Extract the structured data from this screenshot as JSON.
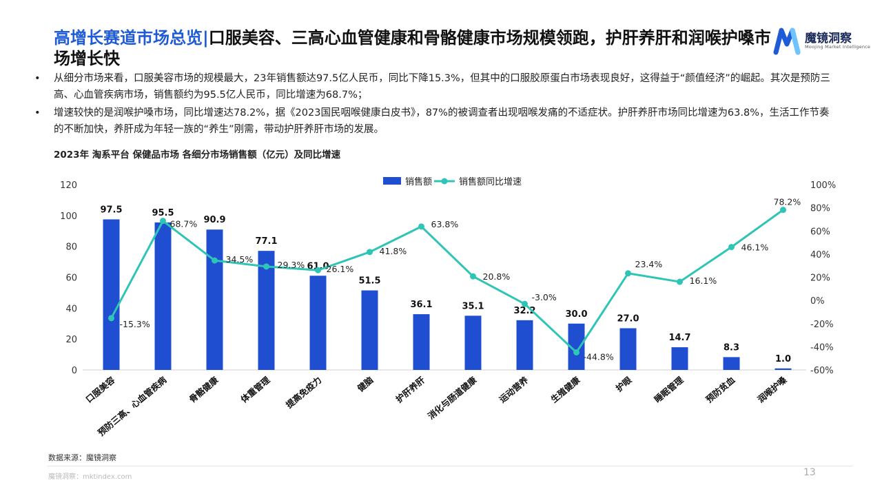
{
  "header": {
    "title_highlight": "高增长赛道市场总览",
    "title_sep": "|",
    "title_rest": "口服美容、三高心血管健康和骨骼健康市场规模领跑，护肝养肝和润喉护嗓市场增长快"
  },
  "logo": {
    "name": "魔镜洞察",
    "tagline": "Moojing Market Intelligence",
    "color": "#1f5bd6"
  },
  "bullets": [
    "从细分市场来看，口服美容市场的规模最大，23年销售额达97.5亿人民币，同比下降15.3%，但其中的口服胶原蛋白市场表现良好，这得益于“颜值经济”的崛起。其次是预防三高、心血管疾病市场，销售额约为95.5亿人民币，同比增速为68.7%；",
    "增速较快的是润喉护嗓市场，同比增速达78.2%，据《2023国民咽喉健康白皮书》，87%的被调查者出现咽喉发痛的不适症状。护肝养肝市场同比增速为63.8%，生活工作节奏的不断加快，养肝成为年轻一族的“养生”刚需，带动护肝养肝市场的发展。"
  ],
  "bullet_symbol": "•",
  "chart_title": "2023年 淘系平台 保健品市场 各细分市场销售额（亿元）及同比增速",
  "chart_data": {
    "type": "bar",
    "categories": [
      "口服美容",
      "预防三高、心血管疾病",
      "骨骼健康",
      "体重管理",
      "提高免疫力",
      "健脑",
      "护肝养肝",
      "消化与肠道健康",
      "运动营养",
      "生殖健康",
      "护眼",
      "睡眠管理",
      "预防贫血",
      "润喉护嗓"
    ],
    "series": [
      {
        "name": "销售额",
        "kind": "bar",
        "axis": "left",
        "color": "#1f4fd0",
        "values": [
          97.5,
          95.5,
          90.9,
          77.1,
          61.0,
          51.5,
          36.1,
          35.1,
          32.2,
          30.0,
          27.0,
          14.7,
          8.3,
          1.0
        ],
        "labels": [
          "97.5",
          "95.5",
          "90.9",
          "77.1",
          "61.0",
          "51.5",
          "36.1",
          "35.1",
          "32.2",
          "30.0",
          "27.0",
          "14.7",
          "8.3",
          "1.0"
        ]
      },
      {
        "name": "销售额同比增速",
        "kind": "line",
        "axis": "right",
        "color": "#2ec4b6",
        "values": [
          -15.3,
          68.7,
          34.5,
          29.3,
          26.1,
          41.8,
          63.8,
          20.8,
          -3.0,
          -44.8,
          23.4,
          16.1,
          46.1,
          78.2
        ],
        "labels": [
          "-15.3%",
          "68.7%",
          "34.5%",
          "29.3%",
          "26.1%",
          "41.8%",
          "63.8%",
          "20.8%",
          "-3.0%",
          "-44.8%",
          "23.4%",
          "16.1%",
          "46.1%",
          "78.2%"
        ]
      }
    ],
    "y_left": {
      "min": 0,
      "max": 120,
      "ticks": [
        "0",
        "20",
        "40",
        "60",
        "80",
        "100",
        "120"
      ]
    },
    "y_right": {
      "min": -60,
      "max": 100,
      "ticks": [
        "-60%",
        "-40%",
        "-20%",
        "0%",
        "20%",
        "40%",
        "60%",
        "80%",
        "100%"
      ]
    },
    "legend_position": "top-center",
    "grid": false
  },
  "source": "数据来源：魔镜洞察",
  "footer": "魔镜洞察：mktindex.com",
  "page_number": "13"
}
